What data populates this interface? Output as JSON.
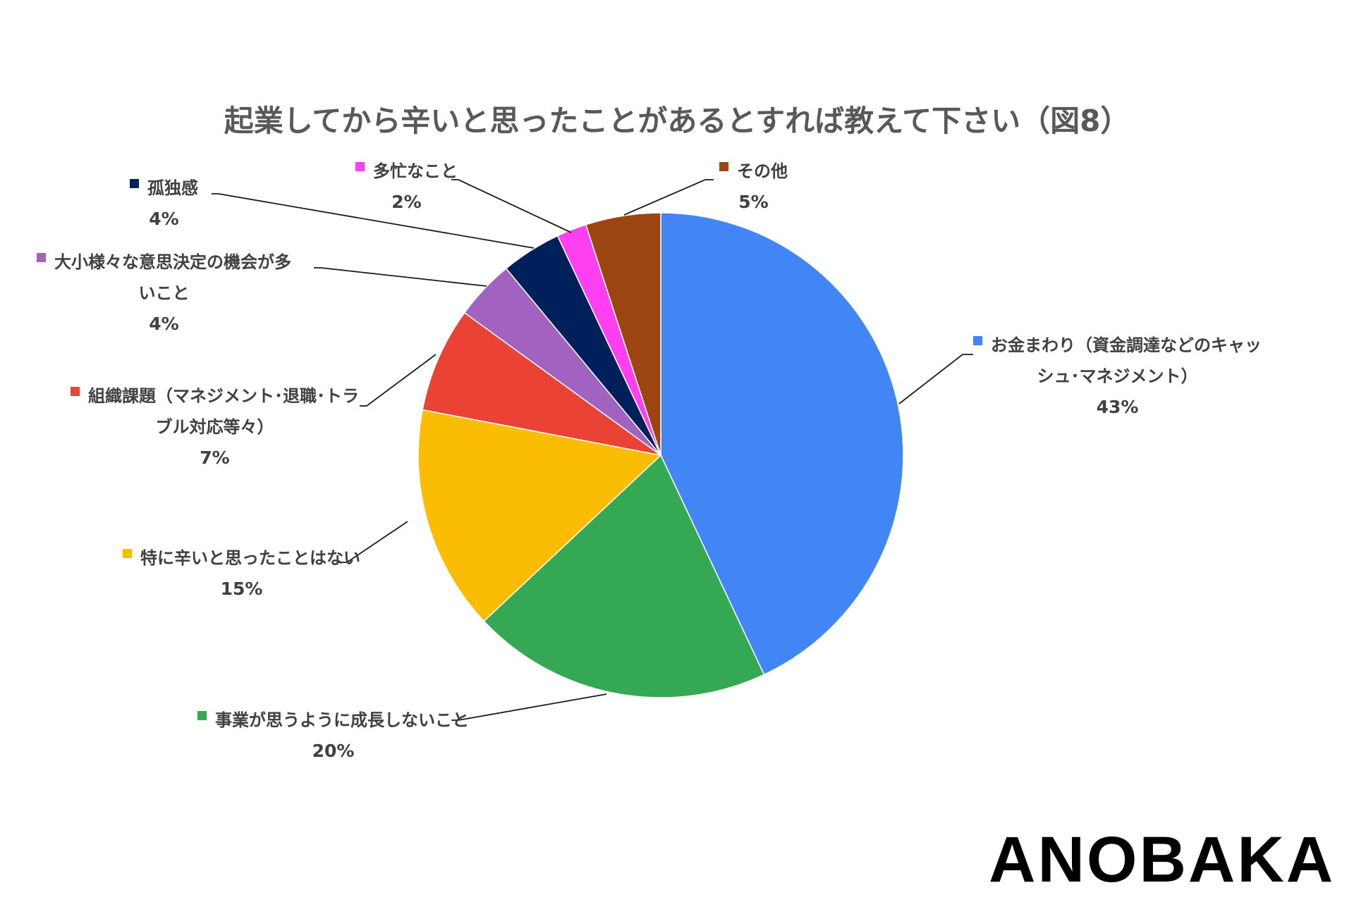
{
  "chart_data": {
    "type": "pie",
    "title": "起業してから辛いと思ったことがあるとすれば教えて下さい（図8）",
    "start": "12 o'clock",
    "direction": "clockwise",
    "slices": [
      {
        "label_lines": [
          "お金まわり（資金調達などのキャッ",
          "シュ･マネジメント）"
        ],
        "value": 43,
        "value_label": "43%",
        "color": "#4285f4"
      },
      {
        "label_lines": [
          "事業が思うように成長しないこと"
        ],
        "value": 20,
        "value_label": "20%",
        "color": "#34a853"
      },
      {
        "label_lines": [
          "特に辛いと思ったことはない"
        ],
        "value": 15,
        "value_label": "15%",
        "color": "#fbbc04"
      },
      {
        "label_lines": [
          "組織課題（マネジメント･退職･トラ",
          "ブル対応等々）"
        ],
        "value": 7,
        "value_label": "7%",
        "color": "#ea4335"
      },
      {
        "label_lines": [
          "大小様々な意思決定の機会が多",
          "いこと"
        ],
        "value": 4,
        "value_label": "4%",
        "color": "#a262c0"
      },
      {
        "label_lines": [
          "孤独感"
        ],
        "value": 4,
        "value_label": "4%",
        "color": "#00205b"
      },
      {
        "label_lines": [
          "多忙なこと"
        ],
        "value": 2,
        "value_label": "2%",
        "color": "#ff3ff0"
      },
      {
        "label_lines": [
          "その他"
        ],
        "value": 5,
        "value_label": "5%",
        "color": "#9c4511"
      }
    ]
  },
  "brand": {
    "logo_text": "ANOBAKA"
  }
}
